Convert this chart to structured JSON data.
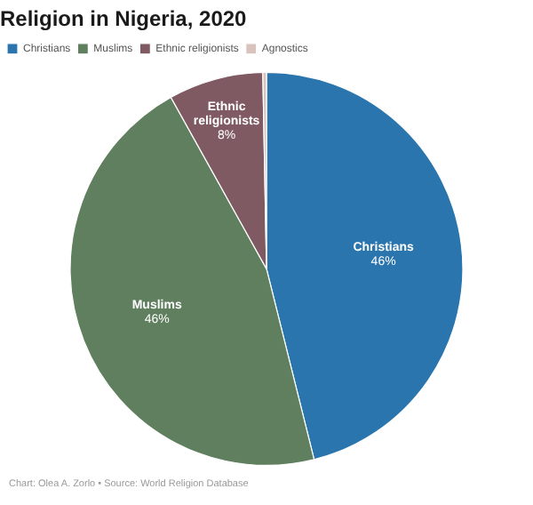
{
  "chart_data": {
    "type": "pie",
    "title": "Religion in Nigeria, 2020",
    "categories": [
      "Christians",
      "Muslims",
      "Ethnic religionists",
      "Agnostics"
    ],
    "values": [
      46.1,
      45.8,
      7.8,
      0.3
    ],
    "colors": [
      "#2a75ad",
      "#5f7f5f",
      "#7f5a62",
      "#d9c3bd"
    ],
    "value_labels": [
      "46%",
      "46%",
      "8%",
      null
    ],
    "legend": "top left",
    "annotations": [
      "Chart: Olea A. Zorlo • Source: World Religion Database"
    ]
  }
}
